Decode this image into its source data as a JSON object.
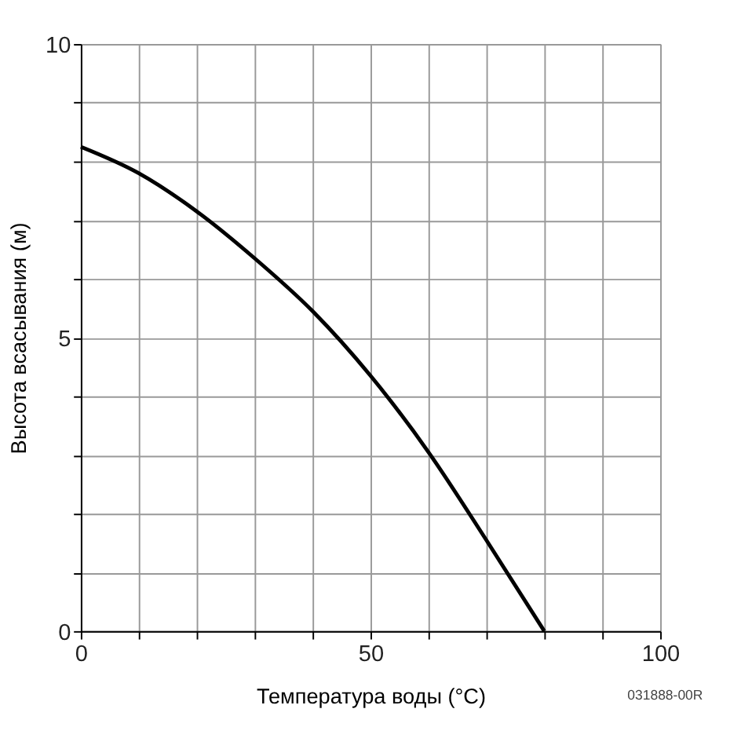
{
  "chart_data": {
    "type": "line",
    "xlabel": "Температура воды (°C)",
    "ylabel": "Высота всасывания (м)",
    "annotations": [
      "031888-00R"
    ],
    "series": [
      {
        "color": "#000000",
        "x": [
          0,
          10,
          20,
          30,
          40,
          50,
          60,
          70,
          80
        ],
        "values": [
          8.25,
          7.8,
          7.15,
          6.35,
          5.45,
          4.35,
          3.05,
          1.55,
          0
        ]
      }
    ],
    "xlim": [
      0,
      100
    ],
    "xticks": [
      0,
      {
        "value": 10,
        "label": null
      },
      {
        "value": 20,
        "label": null
      },
      {
        "value": 30,
        "label": null
      },
      {
        "value": 40,
        "label": null
      },
      50,
      {
        "value": 60,
        "label": null
      },
      {
        "value": 70,
        "label": null
      },
      {
        "value": 80,
        "label": null
      },
      {
        "value": 90,
        "label": null
      },
      100
    ],
    "ylim": [
      0,
      10
    ],
    "yticks": [
      0,
      {
        "value": 1,
        "label": null
      },
      {
        "value": 2,
        "label": null
      },
      {
        "value": 3,
        "label": null
      },
      {
        "value": 4,
        "label": null
      },
      5,
      {
        "value": 6,
        "label": null
      },
      {
        "value": 7,
        "label": null
      },
      {
        "value": 8,
        "label": null
      },
      {
        "value": 9,
        "label": null
      },
      10
    ],
    "grid": true,
    "line_style": "solid",
    "marker": "none"
  }
}
